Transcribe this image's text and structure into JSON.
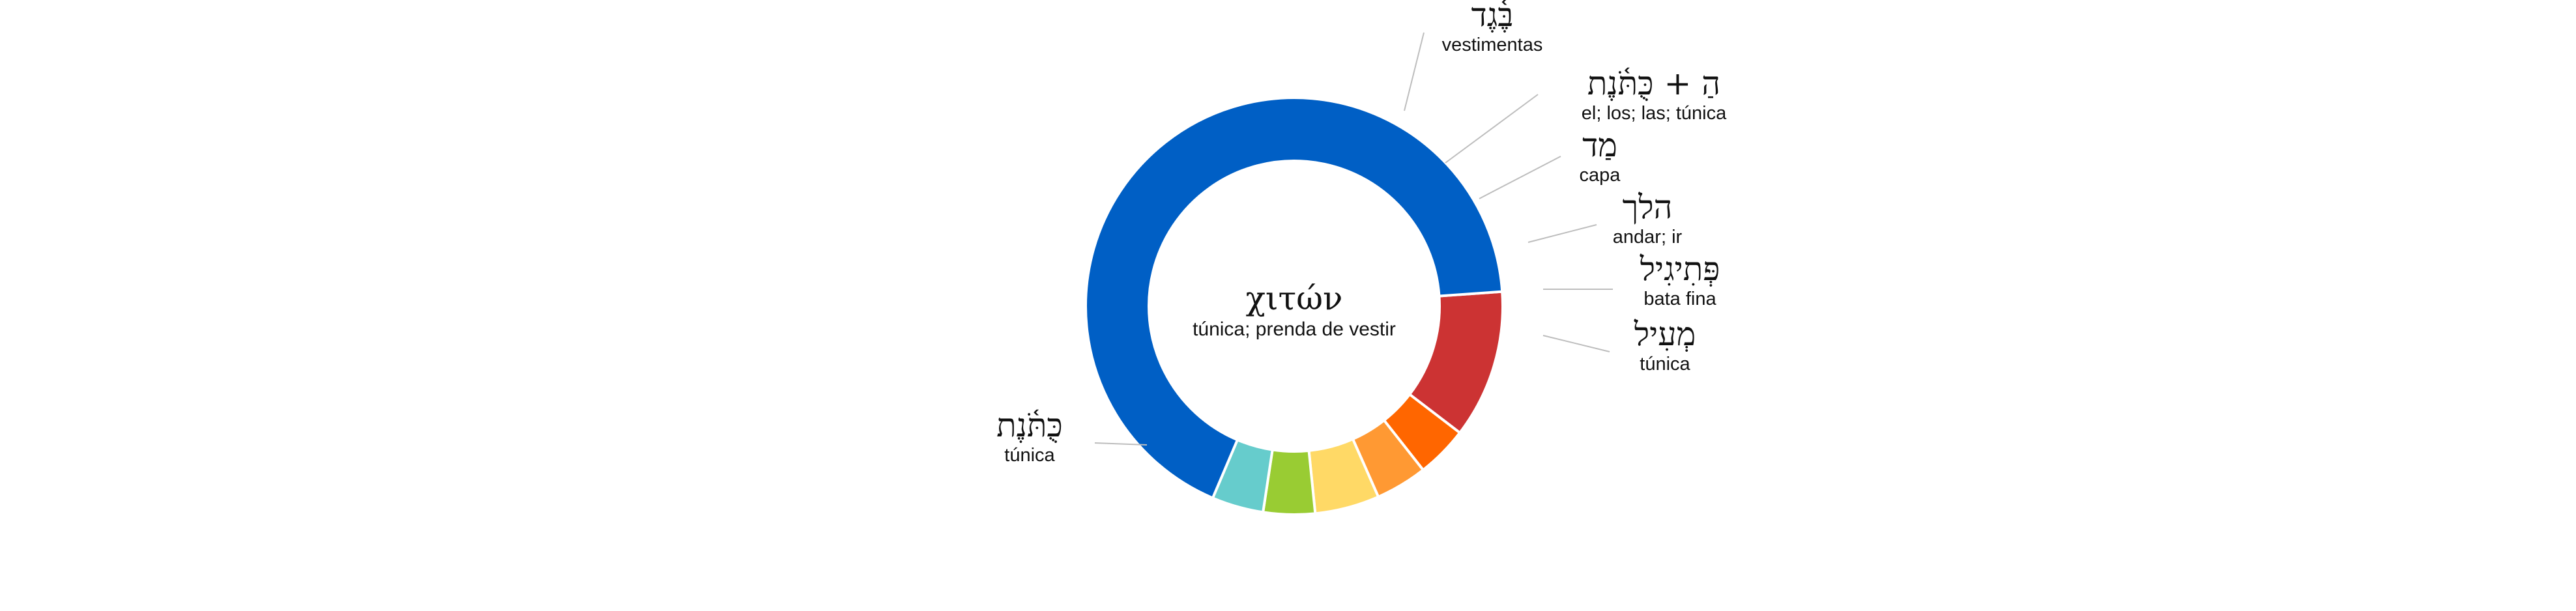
{
  "chart_data": {
    "type": "pie",
    "style": "donut",
    "center": {
      "title": "χιτών",
      "subtitle": "túnica; prenda de vestir"
    },
    "slices": [
      {
        "label": "בֶּ֫גֶד",
        "gloss": "vestimentas",
        "value": 11.5,
        "color": "#cc3333"
      },
      {
        "label": "הַ + כֻּתֹּ֫נֶת",
        "gloss": "el; los; las; túnica",
        "value": 4.0,
        "color": "#ff6600"
      },
      {
        "label": "מַד",
        "gloss": "capa",
        "value": 4.0,
        "color": "#ff9933"
      },
      {
        "label": "הלך",
        "gloss": "andar; ir",
        "value": 5.0,
        "color": "#ffd966"
      },
      {
        "label": "פְּתִיגִיל",
        "gloss": "bata fina",
        "value": 4.0,
        "color": "#99cc33"
      },
      {
        "label": "מְעִיל",
        "gloss": "túnica",
        "value": 4.0,
        "color": "#66cccc"
      },
      {
        "label": "כֻּתֹּ֫נֶת",
        "gloss": "túnica",
        "value": 67.5,
        "color": "#005fc5"
      }
    ]
  }
}
